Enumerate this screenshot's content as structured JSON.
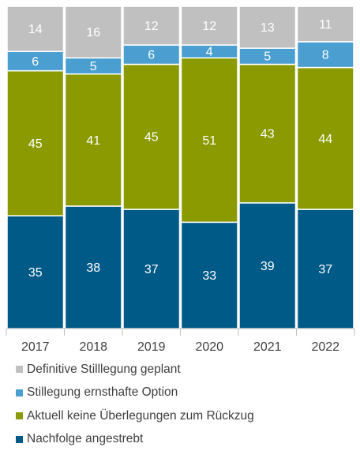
{
  "chart_data": {
    "type": "bar",
    "stacked": true,
    "normalized": true,
    "categories": [
      "2017",
      "2018",
      "2019",
      "2020",
      "2021",
      "2022"
    ],
    "series": [
      {
        "name": "Nachfolge angestrebt",
        "color": "#005A87",
        "values": [
          35,
          38,
          37,
          33,
          39,
          37
        ]
      },
      {
        "name": "Aktuell keine Überlegungen zum Rückzug",
        "color": "#8A9A00",
        "values": [
          45,
          41,
          45,
          51,
          43,
          44
        ]
      },
      {
        "name": "Stillegung ernsthafte Option",
        "color": "#4A9FD0",
        "values": [
          6,
          5,
          6,
          4,
          5,
          8
        ]
      },
      {
        "name": "Definitive Stilllegung geplant",
        "color": "#C0C0C0",
        "values": [
          14,
          16,
          12,
          12,
          13,
          11
        ]
      }
    ],
    "legend_position": "bottom",
    "grid": false
  }
}
